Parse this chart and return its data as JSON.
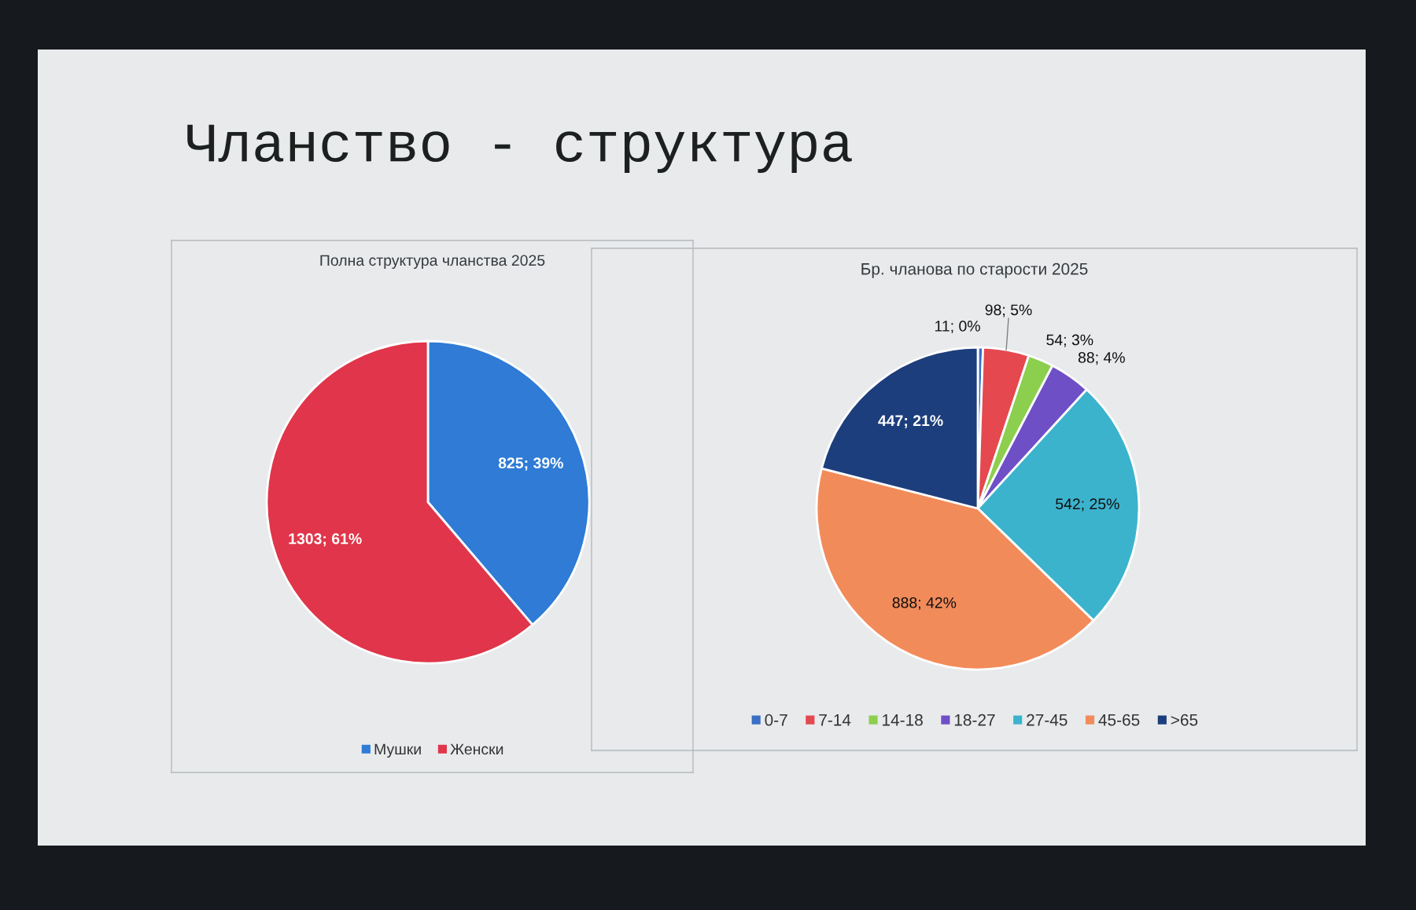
{
  "chart_data": [
    {
      "type": "other",
      "title": "Чланство - структура"
    },
    {
      "type": "pie",
      "title": "Полна структура чланства 2025",
      "categories": [
        "Мушки",
        "Женски"
      ],
      "values": [
        825,
        1303
      ],
      "colors": [
        "#2f7bd6",
        "#e0354a"
      ],
      "value_labels": [
        "825; 39%",
        "1303; 61%"
      ],
      "legend": "bottom"
    },
    {
      "type": "pie",
      "title": "Бр. чланова по старости 2025",
      "categories": [
        "0-7",
        "7-14",
        "14-18",
        "18-27",
        "27-45",
        "45-65",
        ">65"
      ],
      "values": [
        11,
        98,
        54,
        88,
        542,
        888,
        447
      ],
      "colors": [
        "#3a6fc4",
        "#e5484f",
        "#8ccf4e",
        "#6f4fc6",
        "#3cb3cd",
        "#f28b5a",
        "#1d3e7c"
      ],
      "value_labels": [
        "11; 0%",
        "98; 5%",
        "54; 3%",
        "88; 4%",
        "542; 25%",
        "888; 42%",
        "447; 21%"
      ],
      "legend": "bottom"
    }
  ]
}
